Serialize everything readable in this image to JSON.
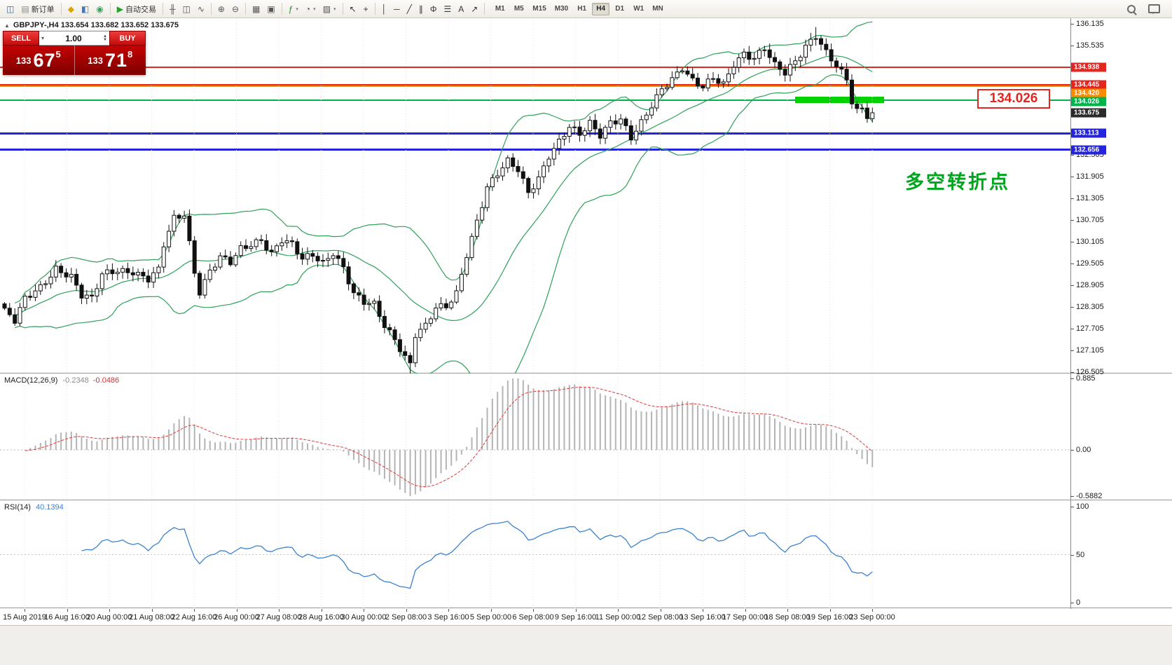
{
  "toolbar": {
    "groups": [
      {
        "items": [
          {
            "name": "charts",
            "glyph": "◫",
            "color": "#44628a"
          },
          {
            "name": "new-order",
            "glyph": "▤",
            "color": "#8a8a8a",
            "label": "新订单"
          }
        ]
      },
      {
        "items": [
          {
            "name": "profiles",
            "glyph": "◆",
            "color": "#d9a400"
          },
          {
            "name": "market-watch",
            "glyph": "◧",
            "color": "#4477bb"
          },
          {
            "name": "navigator",
            "glyph": "◉",
            "color": "#3fa060"
          }
        ]
      },
      {
        "items": [
          {
            "name": "autotrading",
            "glyph": "▶",
            "color": "#1fa51f",
            "label": "自动交易"
          }
        ]
      },
      {
        "items": [
          {
            "name": "bar-chart",
            "glyph": "╫",
            "color": "#555555"
          },
          {
            "name": "candlestick-chart",
            "glyph": "◫",
            "color": "#555555"
          },
          {
            "name": "line-chart",
            "glyph": "∿",
            "color": "#555555"
          }
        ]
      },
      {
        "items": [
          {
            "name": "zoom-in",
            "glyph": "⊕",
            "color": "#555555"
          },
          {
            "name": "zoom-out",
            "glyph": "⊖",
            "color": "#555555"
          }
        ]
      },
      {
        "items": [
          {
            "name": "grid",
            "glyph": "▦",
            "color": "#555555"
          },
          {
            "name": "tile-windows",
            "glyph": "▣",
            "color": "#555555"
          }
        ]
      },
      {
        "items": [
          {
            "name": "indicators",
            "glyph": "ƒ",
            "color": "#2a8a2a",
            "caret": true
          },
          {
            "name": "periods",
            "glyph": "◔",
            "color": "#555555",
            "caret": true
          },
          {
            "name": "templates",
            "glyph": "▨",
            "color": "#555555",
            "caret": true
          }
        ]
      },
      {
        "items": [
          {
            "name": "cursor",
            "glyph": "↖",
            "color": "#333333"
          },
          {
            "name": "crosshair",
            "glyph": "+",
            "color": "#333333"
          }
        ]
      },
      {
        "items": [
          {
            "name": "vertical-line",
            "glyph": "│",
            "color": "#333333"
          },
          {
            "name": "horizontal-line",
            "glyph": "─",
            "color": "#333333"
          },
          {
            "name": "trendline",
            "glyph": "╱",
            "color": "#333333"
          },
          {
            "name": "channel",
            "glyph": "∥",
            "color": "#333333"
          },
          {
            "name": "fibonacci",
            "glyph": "Φ",
            "color": "#333333"
          },
          {
            "name": "objects-levels",
            "glyph": "☰",
            "color": "#333333"
          },
          {
            "name": "text",
            "glyph": "A",
            "color": "#333333"
          },
          {
            "name": "arrows",
            "glyph": "↗",
            "color": "#333333"
          }
        ]
      }
    ],
    "timeframes": [
      {
        "label": "M1"
      },
      {
        "label": "M5"
      },
      {
        "label": "M15"
      },
      {
        "label": "M30"
      },
      {
        "label": "H1"
      },
      {
        "label": "H4",
        "active": true
      },
      {
        "label": "D1"
      },
      {
        "label": "W1"
      },
      {
        "label": "MN"
      }
    ]
  },
  "symbol_info": {
    "collapse_icon": "▲",
    "text": "GBPJPY-,H4  133.654 133.682 133.652 133.675"
  },
  "trade_panel": {
    "sell_label": "SELL",
    "buy_label": "BUY",
    "volume": "1.00",
    "bid": {
      "big": "133",
      "pips": "67",
      "frac": "5"
    },
    "ask": {
      "big": "133",
      "pips": "71",
      "frac": "8"
    }
  },
  "price_axis": {
    "scale_labels": [
      "136.135",
      "135.535",
      "132.505",
      "131.905",
      "131.305",
      "130.705",
      "130.105",
      "129.505",
      "128.905",
      "128.305",
      "127.705",
      "127.105",
      "126.505"
    ],
    "tags": [
      {
        "value": "134.938",
        "color": "#e22620"
      },
      {
        "value": "134.445",
        "color": "#e22620"
      },
      {
        "value": "134.420",
        "color": "#ff8a00"
      },
      {
        "value": "134.026",
        "color": "#00b44c"
      },
      {
        "value": "133.675",
        "color": "#2b2b2b",
        "current": true
      },
      {
        "value": "133.113",
        "color": "#2424dd"
      },
      {
        "value": "132.656",
        "color": "#2424dd"
      }
    ]
  },
  "levels": [
    {
      "price": 134.938,
      "color": "#e22620",
      "width": 2
    },
    {
      "price": 134.445,
      "color": "#e22620",
      "width": 2
    },
    {
      "price": 134.42,
      "color": "#ff8a00",
      "width": 2
    },
    {
      "price": 134.026,
      "color": "#00b44c",
      "width": 2
    },
    {
      "price": 133.113,
      "color": "#2424dd",
      "width": 3
    },
    {
      "price": 132.656,
      "color": "#2424dd",
      "width": 3
    }
  ],
  "highlight_segment": {
    "price": 134.026,
    "color": "#00d200"
  },
  "callout": {
    "text": "134.026",
    "color": "#e22620"
  },
  "annotation": {
    "text": "多空转折点",
    "color": "#00a51e"
  },
  "chart_data": {
    "type": "candlestick",
    "symbol": "GBPJPY-",
    "timeframe": "H4",
    "ohlc_line": "133.654 133.682 133.652 133.675",
    "last_close": 133.675,
    "price_range": [
      126.505,
      136.135
    ],
    "candle_count": 170,
    "bollinger_color": "#2fa05a",
    "price_path_anchors": [
      [
        0,
        128.2
      ],
      [
        2,
        127.9
      ],
      [
        4,
        128.5
      ],
      [
        7,
        128.85
      ],
      [
        10,
        129.4
      ],
      [
        13,
        129.15
      ],
      [
        15,
        128.6
      ],
      [
        17,
        128.5
      ],
      [
        19,
        129.2
      ],
      [
        22,
        129.35
      ],
      [
        25,
        129.3
      ],
      [
        28,
        129.05
      ],
      [
        30,
        129.3
      ],
      [
        31,
        130.0
      ],
      [
        33,
        130.75
      ],
      [
        35,
        130.9
      ],
      [
        37,
        129.3
      ],
      [
        38,
        128.75
      ],
      [
        40,
        129.3
      ],
      [
        42,
        129.65
      ],
      [
        44,
        129.5
      ],
      [
        46,
        129.9
      ],
      [
        48,
        130.05
      ],
      [
        50,
        130.2
      ],
      [
        52,
        129.8
      ],
      [
        54,
        130.15
      ],
      [
        56,
        130.0
      ],
      [
        58,
        129.6
      ],
      [
        60,
        129.75
      ],
      [
        62,
        129.55
      ],
      [
        64,
        129.85
      ],
      [
        66,
        129.4
      ],
      [
        68,
        128.65
      ],
      [
        70,
        128.4
      ],
      [
        72,
        128.35
      ],
      [
        74,
        127.8
      ],
      [
        76,
        127.45
      ],
      [
        78,
        126.95
      ],
      [
        79,
        126.75
      ],
      [
        80,
        127.55
      ],
      [
        82,
        127.75
      ],
      [
        84,
        128.25
      ],
      [
        86,
        128.3
      ],
      [
        88,
        128.7
      ],
      [
        90,
        129.8
      ],
      [
        92,
        130.7
      ],
      [
        94,
        131.6
      ],
      [
        96,
        131.95
      ],
      [
        98,
        132.3
      ],
      [
        100,
        132.1
      ],
      [
        102,
        131.5
      ],
      [
        104,
        131.9
      ],
      [
        106,
        132.5
      ],
      [
        108,
        132.85
      ],
      [
        110,
        133.25
      ],
      [
        112,
        133.05
      ],
      [
        114,
        133.4
      ],
      [
        116,
        133.1
      ],
      [
        118,
        133.45
      ],
      [
        120,
        133.5
      ],
      [
        122,
        132.95
      ],
      [
        124,
        133.35
      ],
      [
        126,
        133.85
      ],
      [
        128,
        134.35
      ],
      [
        130,
        134.65
      ],
      [
        132,
        134.95
      ],
      [
        134,
        134.55
      ],
      [
        136,
        134.35
      ],
      [
        138,
        134.6
      ],
      [
        140,
        134.45
      ],
      [
        142,
        135.05
      ],
      [
        144,
        135.35
      ],
      [
        146,
        135.2
      ],
      [
        148,
        135.45
      ],
      [
        150,
        134.95
      ],
      [
        152,
        134.75
      ],
      [
        154,
        135.1
      ],
      [
        156,
        135.55
      ],
      [
        158,
        135.85
      ],
      [
        160,
        135.35
      ],
      [
        162,
        134.95
      ],
      [
        164,
        134.55
      ],
      [
        165,
        133.95
      ],
      [
        166,
        133.7
      ],
      [
        167,
        133.78
      ],
      [
        168,
        133.62
      ],
      [
        169,
        133.675
      ]
    ]
  },
  "indicators": {
    "macd": {
      "name": "MACD(12,26,9)",
      "value_main": "-0.2348",
      "value_signal": "-0.0486",
      "axis_labels": [
        "0.885",
        "0.00",
        "-0.5882"
      ],
      "histogram_color": "#b4b4b4",
      "signal_color": "#e03a3a"
    },
    "rsi": {
      "name": "RSI(14)",
      "value": "40.1394",
      "axis_labels": [
        "100",
        "50",
        "0"
      ],
      "line_color": "#3b82d0"
    }
  },
  "time_axis": {
    "labels": [
      "15 Aug 2019",
      "16 Aug 16:00",
      "20 Aug 00:00",
      "21 Aug 08:00",
      "22 Aug 16:00",
      "26 Aug 00:00",
      "27 Aug 08:00",
      "28 Aug 16:00",
      "30 Aug 00:00",
      "2 Sep 08:00",
      "3 Sep 16:00",
      "5 Sep 00:00",
      "6 Sep 08:00",
      "9 Sep 16:00",
      "11 Sep 00:00",
      "12 Sep 08:00",
      "13 Sep 16:00",
      "17 Sep 00:00",
      "18 Sep 08:00",
      "19 Sep 16:00",
      "23 Sep 00:00"
    ]
  }
}
